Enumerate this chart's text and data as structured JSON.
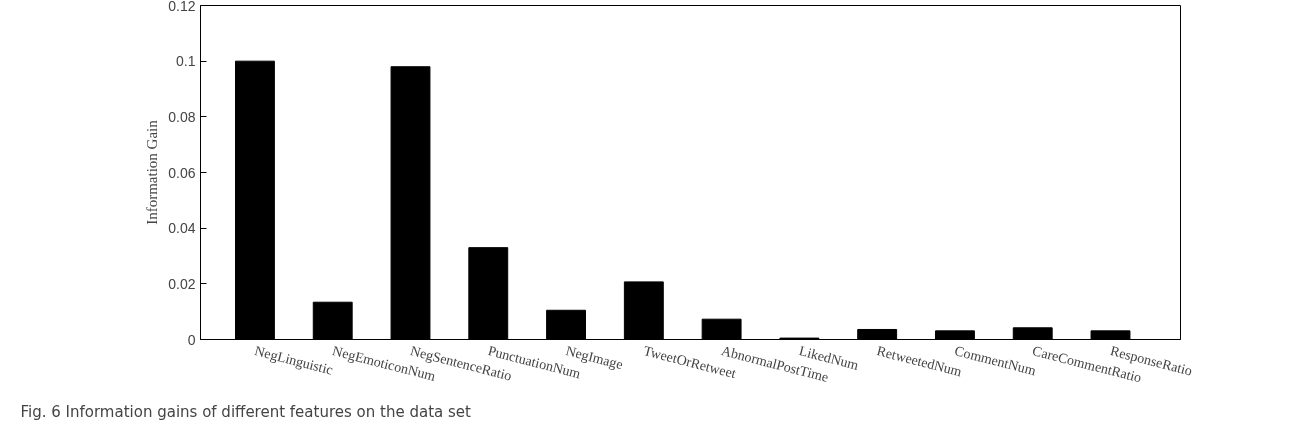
{
  "chart_data": {
    "type": "bar",
    "ylabel": "Information Gain",
    "categories": [
      "NegLinguistic",
      "NegEmoticonNum",
      "NegSentenceRatio",
      "PunctuationNum",
      "NegImage",
      "TweetOrRetweet",
      "AbnormalPostTime",
      "LikedNum",
      "RetweetedNum",
      "CommentNum",
      "CareCommentRatio",
      "ResponseRatio"
    ],
    "values": [
      0.1,
      0.0134,
      0.098,
      0.033,
      0.0105,
      0.0207,
      0.0073,
      0.0005,
      0.0036,
      0.0031,
      0.0042,
      0.0031
    ],
    "color": "#000000",
    "ylim": [
      0,
      0.12
    ],
    "yticks": [
      0,
      0.02,
      0.04,
      0.06,
      0.08,
      0.1,
      0.12
    ],
    "grid": false,
    "annotations": [
      "Fig. 6  Information gains of different features on the data set"
    ]
  }
}
